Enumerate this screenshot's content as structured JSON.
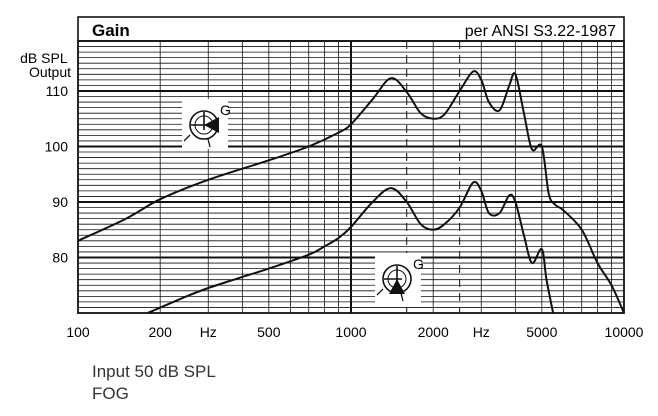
{
  "chart_data": {
    "type": "line",
    "title": "Gain",
    "subtitle": "per ANSI S3.22-1987",
    "ylabel": "dB SPL Output",
    "xlabel": "Hz",
    "x_scale": "log",
    "xlim": [
      100,
      10000
    ],
    "ylim": [
      70,
      119
    ],
    "grid": true,
    "x_ticks": [
      {
        "value": 100,
        "label": "100"
      },
      {
        "value": 200,
        "label": "200"
      },
      {
        "value": 300,
        "label": "Hz"
      },
      {
        "value": 500,
        "label": "500"
      },
      {
        "value": 1000,
        "label": "1000"
      },
      {
        "value": 2000,
        "label": "2000"
      },
      {
        "value": 3000,
        "label": "Hz"
      },
      {
        "value": 5000,
        "label": "5000"
      },
      {
        "value": 10000,
        "label": "10000"
      }
    ],
    "y_ticks": [
      {
        "value": 80,
        "label": "80"
      },
      {
        "value": 90,
        "label": "90"
      },
      {
        "value": 100,
        "label": "100"
      },
      {
        "value": 110,
        "label": "110"
      }
    ],
    "dashed_verticals": [
      1600,
      2500
    ],
    "series": [
      {
        "x": [
          100,
          150,
          200,
          300,
          500,
          700,
          900,
          1000,
          1200,
          1400,
          1600,
          1800,
          2000,
          2200,
          2500,
          2800,
          3000,
          3200,
          3500,
          3800,
          4000,
          4300,
          4600,
          5000,
          5300,
          5600,
          6000,
          7000,
          8000,
          9000,
          10000
        ],
        "values": [
          83,
          87,
          90.5,
          94,
          97.5,
          100,
          102.5,
          104,
          108.5,
          112.3,
          109.8,
          106,
          105,
          105.8,
          110,
          113.5,
          112,
          108,
          106.5,
          111,
          113,
          106,
          99.5,
          100,
          91.5,
          89.5,
          88.5,
          85,
          79,
          75,
          70
        ]
      },
      {
        "x": [
          180,
          250,
          300,
          400,
          500,
          700,
          800,
          900,
          1000,
          1200,
          1400,
          1600,
          1800,
          2000,
          2200,
          2500,
          2800,
          3000,
          3200,
          3500,
          3800,
          4000,
          4300,
          4600,
          5000,
          5200,
          5500
        ],
        "values": [
          70,
          73,
          74.5,
          76.5,
          78,
          80.5,
          82,
          83.5,
          85.5,
          90,
          92.5,
          90,
          86,
          85,
          86,
          89,
          93.5,
          92,
          88,
          88,
          91.2,
          90,
          84,
          79,
          81.5,
          76,
          70
        ]
      }
    ],
    "symbols": [
      {
        "label": "G"
      },
      {
        "label": "G"
      }
    ]
  },
  "caption": {
    "line1": "Input 50 dB SPL",
    "line2": "FOG"
  }
}
